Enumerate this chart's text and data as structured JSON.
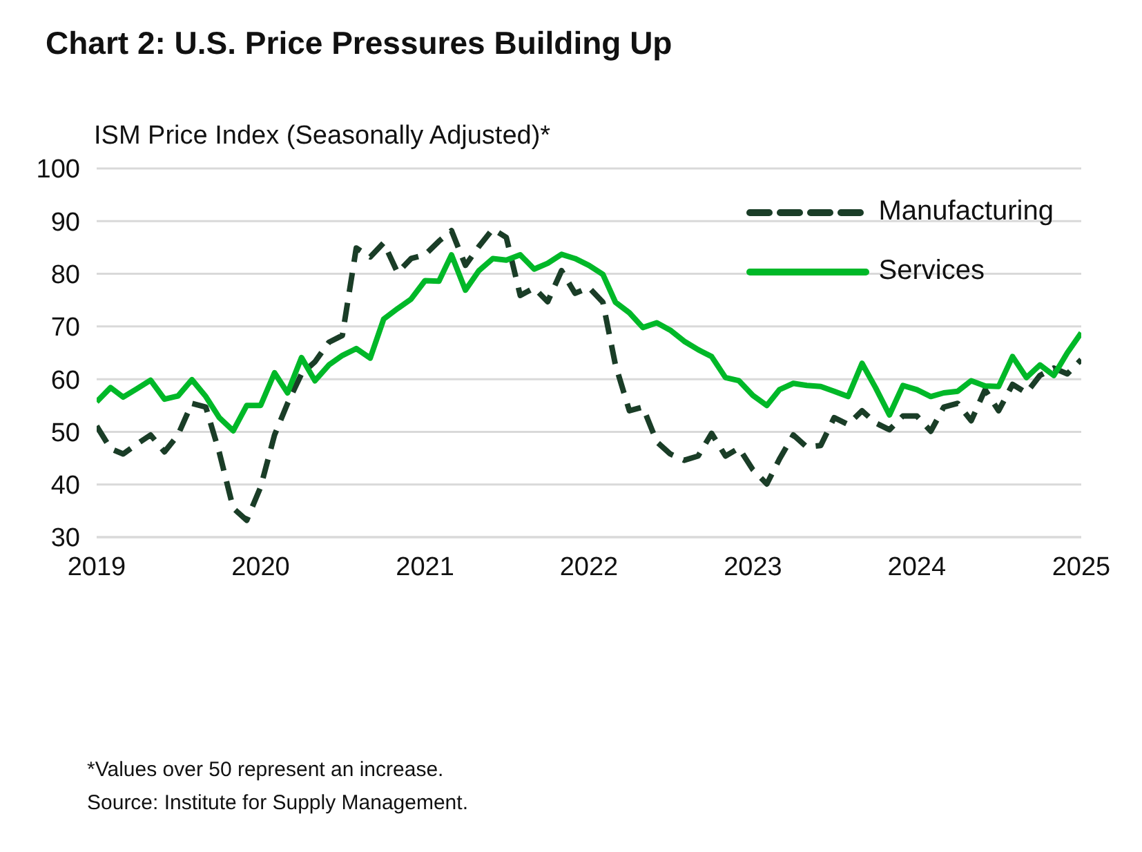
{
  "chart_data": {
    "type": "line",
    "title": "Chart 2: U.S. Price Pressures Building Up",
    "ylabel": "ISM Price Index (Seasonally Adjusted)*",
    "x": [
      "2019-01",
      "2019-02",
      "2019-03",
      "2019-04",
      "2019-05",
      "2019-06",
      "2019-07",
      "2019-08",
      "2019-09",
      "2019-10",
      "2019-11",
      "2019-12",
      "2020-01",
      "2020-02",
      "2020-03",
      "2020-04",
      "2020-05",
      "2020-06",
      "2020-07",
      "2020-08",
      "2020-09",
      "2020-10",
      "2020-11",
      "2020-12",
      "2021-01",
      "2021-02",
      "2021-03",
      "2021-04",
      "2021-05",
      "2021-06",
      "2021-07",
      "2021-08",
      "2021-09",
      "2021-10",
      "2021-11",
      "2021-12",
      "2022-01",
      "2022-02",
      "2022-03",
      "2022-04",
      "2022-05",
      "2022-06",
      "2022-07",
      "2022-08",
      "2022-09",
      "2022-10",
      "2022-11",
      "2022-12",
      "2023-01",
      "2023-02",
      "2023-03",
      "2023-04",
      "2023-05",
      "2023-06",
      "2023-07",
      "2023-08",
      "2023-09",
      "2023-10",
      "2023-11",
      "2023-12",
      "2024-01",
      "2024-02",
      "2024-03",
      "2024-04",
      "2024-05",
      "2024-06",
      "2024-07",
      "2024-08",
      "2024-09",
      "2024-10",
      "2024-11",
      "2024-12",
      "2025-01"
    ],
    "series": [
      {
        "name": "Manufacturing",
        "color": "#1a3d27",
        "line_style": "dashed",
        "values": [
          51.1,
          46.8,
          45.8,
          47.7,
          49.4,
          46.2,
          49.4,
          55.4,
          54.7,
          46.1,
          35.5,
          33.2,
          39.5,
          49.4,
          55.4,
          61.0,
          63.3,
          67.0,
          68.3,
          84.9,
          83.2,
          85.9,
          80.2,
          82.9,
          83.6,
          86.2,
          88.2,
          81.6,
          85.2,
          88.5,
          86.9,
          75.9,
          77.3,
          74.7,
          80.6,
          76.3,
          77.4,
          74.6,
          62.7,
          54.0,
          54.7,
          48.1,
          45.8,
          44.6,
          45.4,
          49.7,
          45.4,
          46.9,
          42.8,
          40.1,
          44.8,
          49.4,
          47.1,
          47.4,
          52.7,
          51.4,
          54.0,
          51.7,
          50.4,
          53.0,
          53.0,
          50.1,
          54.7,
          55.4,
          52.1,
          58.0,
          54.0,
          59.0,
          57.4,
          60.7,
          62.1,
          61.0,
          63.7
        ]
      },
      {
        "name": "Services",
        "color": "#00b828",
        "line_style": "solid",
        "values": [
          55.7,
          58.4,
          56.6,
          58.2,
          59.8,
          56.2,
          56.8,
          59.9,
          56.7,
          52.7,
          50.2,
          55.0,
          55.0,
          61.2,
          57.4,
          64.1,
          59.7,
          62.7,
          64.5,
          65.8,
          64.0,
          71.4,
          73.4,
          75.2,
          78.7,
          78.6,
          83.6,
          76.9,
          80.6,
          82.9,
          82.6,
          83.6,
          80.9,
          82.0,
          83.7,
          82.9,
          81.6,
          79.9,
          74.6,
          72.6,
          69.8,
          70.7,
          69.3,
          67.2,
          65.6,
          64.3,
          60.3,
          59.7,
          56.9,
          55.0,
          58.0,
          59.2,
          58.8,
          58.6,
          57.7,
          56.7,
          63.0,
          58.4,
          53.2,
          58.8,
          58.0,
          56.7,
          57.4,
          57.7,
          59.7,
          58.7,
          58.6,
          64.3,
          60.3,
          62.7,
          60.7,
          65.0,
          68.8
        ]
      }
    ],
    "xlim": [
      "2019",
      "2025"
    ],
    "xticks": [
      "2019",
      "2020",
      "2021",
      "2022",
      "2023",
      "2024",
      "2025"
    ],
    "ylim": [
      30,
      100
    ],
    "yticks": [
      30,
      40,
      50,
      60,
      70,
      80,
      90,
      100
    ],
    "grid": "y",
    "legend": "top right",
    "annotations": [
      "*Values over 50 represent an increase.",
      "Source: Institute for Supply Management."
    ]
  }
}
